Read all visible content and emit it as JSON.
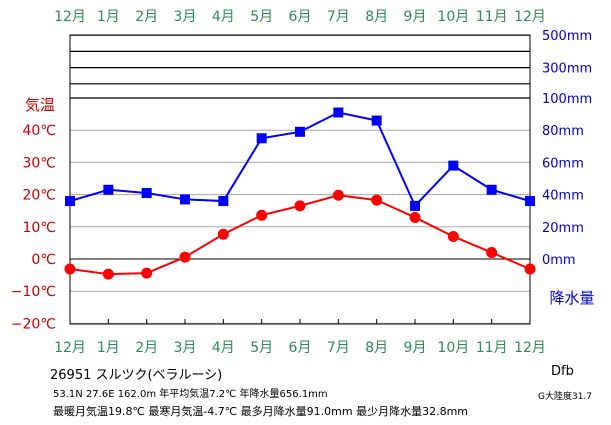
{
  "colors": {
    "month_label": "#2e8b57",
    "temp_axis": "#cc0000",
    "precip_axis": "#0000cc",
    "temp_series": "#ff0000",
    "precip_series": "#0000ff",
    "axis": "#000000",
    "grid": "#aaaaaa"
  },
  "chart_data": {
    "type": "line",
    "categories": [
      "12月",
      "1月",
      "2月",
      "3月",
      "4月",
      "5月",
      "6月",
      "7月",
      "8月",
      "9月",
      "10月",
      "11月",
      "12月"
    ],
    "temp_axis": {
      "title": "気温",
      "range": [
        -20,
        50
      ],
      "ticks": [
        {
          "v": 40,
          "label": "40℃"
        },
        {
          "v": 30,
          "label": "30℃"
        },
        {
          "v": 20,
          "label": "20℃"
        },
        {
          "v": 10,
          "label": "10℃"
        },
        {
          "v": 0,
          "label": "0℃"
        },
        {
          "v": -10,
          "label": "−10℃"
        },
        {
          "v": -20,
          "label": "−20℃"
        }
      ]
    },
    "precip_axis": {
      "title": "降水量",
      "ticks": [
        {
          "v": 500,
          "label": "500mm"
        },
        {
          "v": 400,
          "label": ""
        },
        {
          "v": 300,
          "label": "300mm"
        },
        {
          "v": 200,
          "label": ""
        },
        {
          "v": 100,
          "label": "100mm"
        },
        {
          "v": 80,
          "label": "80mm"
        },
        {
          "v": 60,
          "label": "60mm"
        },
        {
          "v": 40,
          "label": "40mm"
        },
        {
          "v": 20,
          "label": "20mm"
        },
        {
          "v": 0,
          "label": "0mm"
        }
      ],
      "compressed_ticks": [
        500,
        400,
        300,
        200,
        100
      ],
      "linear_max": 100
    },
    "series": [
      {
        "kind": "temperature",
        "unit": "℃",
        "marker": "circle",
        "values": [
          -3.1,
          -4.7,
          -4.4,
          0.6,
          7.7,
          13.6,
          16.5,
          19.8,
          18.3,
          12.9,
          7.0,
          2.0,
          -3.1
        ]
      },
      {
        "kind": "precipitation",
        "unit": "mm",
        "marker": "square",
        "values": [
          36,
          43,
          41,
          37,
          36,
          75,
          79,
          91,
          86,
          33,
          58,
          43,
          36
        ]
      }
    ]
  },
  "station": "26951  スルツク(ベラルーシ)",
  "stats_line_1": "53.1N  27.6E  162.0m 年平均気温7.2℃  年降水量656.1mm",
  "stats_line_2": "最暖月気温19.8℃ 最寒月気温-4.7℃ 最多月降水量91.0mm 最少月降水量32.8mm",
  "climate_code": "Dfb",
  "g_label": "G大陸度31.7"
}
